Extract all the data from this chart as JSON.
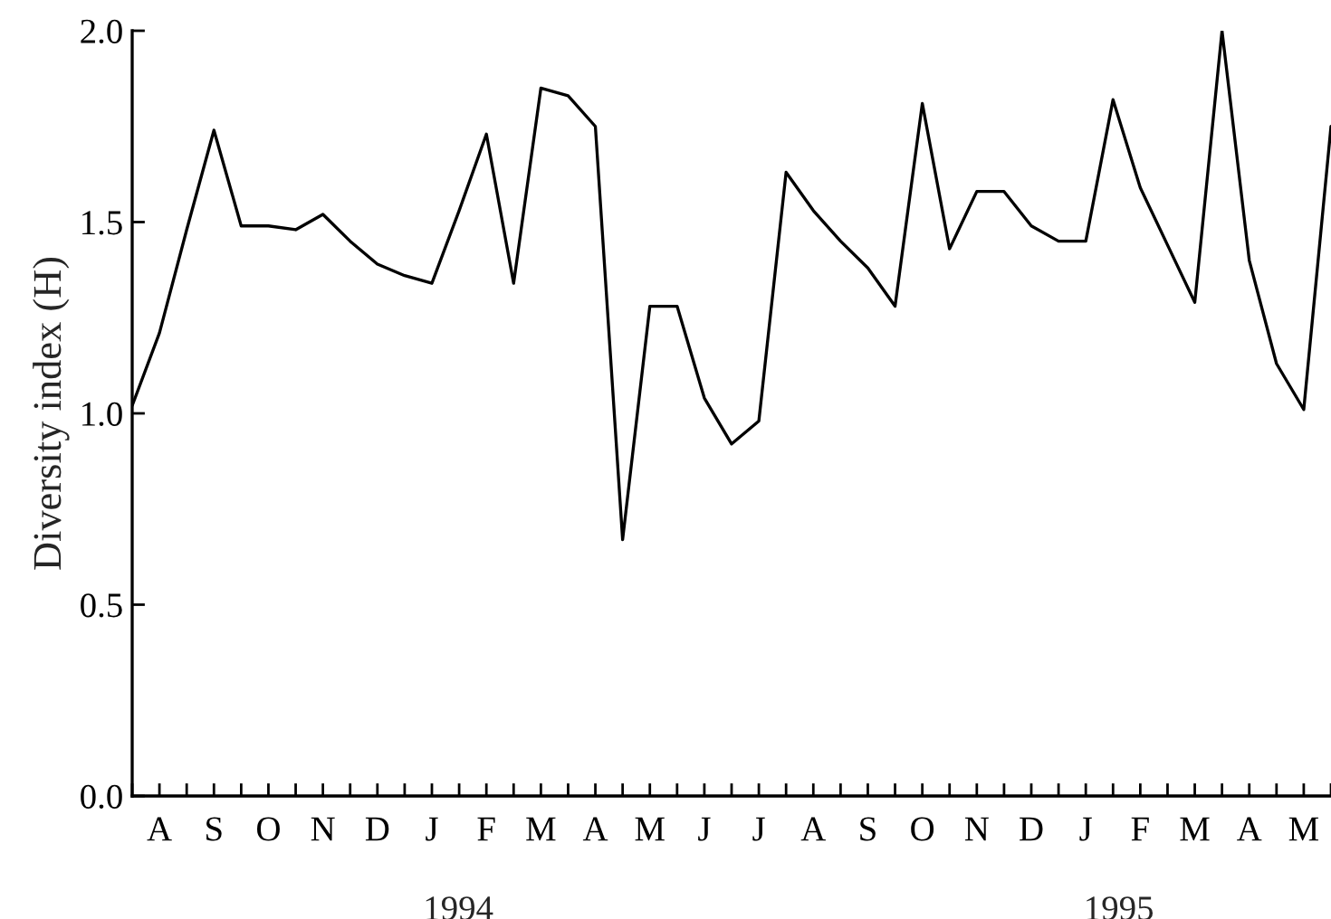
{
  "chart_data": {
    "type": "line",
    "ylabel": "Diversity index (H)",
    "categories": [
      null,
      "A",
      null,
      "S",
      null,
      "O",
      null,
      "N",
      null,
      "D",
      null,
      "J",
      null,
      "F",
      null,
      "M",
      null,
      "A",
      null,
      "M",
      null,
      "J",
      null,
      "J",
      null,
      "A",
      null,
      "S",
      null,
      "O",
      null,
      "N",
      null,
      "D",
      null,
      "J",
      null,
      "F",
      null,
      "M",
      null,
      "A",
      null,
      "M",
      null
    ],
    "series": [
      {
        "color": "#000000",
        "values": [
          1.02,
          1.21,
          1.48,
          1.74,
          1.49,
          1.49,
          1.48,
          1.52,
          1.45,
          1.39,
          1.36,
          1.34,
          1.53,
          1.73,
          1.34,
          1.85,
          1.83,
          1.75,
          0.67,
          1.28,
          1.28,
          1.04,
          0.92,
          0.98,
          1.63,
          1.53,
          1.45,
          1.38,
          1.28,
          1.81,
          1.43,
          1.58,
          1.58,
          1.49,
          1.45,
          1.45,
          1.82,
          1.59,
          1.44,
          1.29,
          2.0,
          1.4,
          1.13,
          1.01,
          1.75
        ]
      }
    ],
    "ylim": [
      0,
      2.0
    ],
    "yticks": [
      {
        "value": 0,
        "label": "0.0"
      },
      {
        "value": 0.5,
        "label": "0.5"
      },
      {
        "value": 1.0,
        "label": "1.0"
      },
      {
        "value": 1.5,
        "label": "1.5"
      },
      {
        "value": 2.0,
        "label": "2.0"
      }
    ],
    "annotations": [
      "1994",
      "1995"
    ],
    "grid": false,
    "legend": false,
    "marker": "none",
    "line_style": "solid"
  }
}
